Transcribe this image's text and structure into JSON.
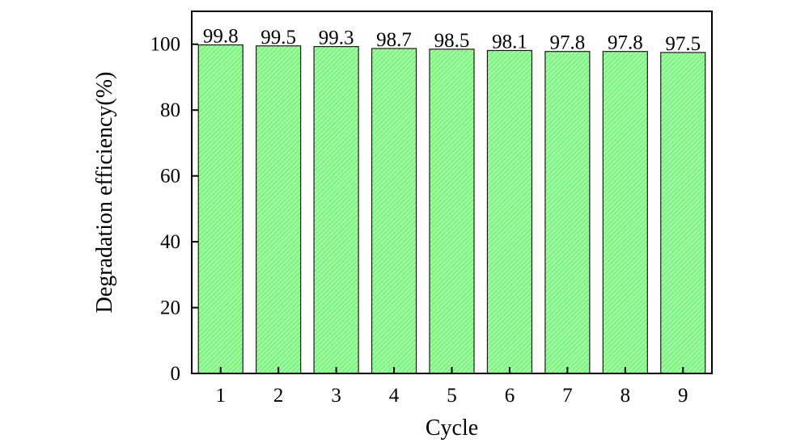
{
  "chart_data": {
    "type": "bar",
    "categories": [
      "1",
      "2",
      "3",
      "4",
      "5",
      "6",
      "7",
      "8",
      "9"
    ],
    "values": [
      99.8,
      99.5,
      99.3,
      98.7,
      98.5,
      98.1,
      97.8,
      97.8,
      97.5
    ],
    "value_labels": [
      "99.8",
      "99.5",
      "99.3",
      "98.7",
      "98.5",
      "98.1",
      "97.8",
      "97.8",
      "97.5"
    ],
    "xlabel": "Cycle",
    "ylabel": "Degradation efficiency(%)",
    "ylim": [
      0,
      110
    ],
    "yticks": [
      0,
      20,
      40,
      60,
      80,
      100
    ],
    "ytick_labels": [
      "0",
      "20",
      "40",
      "60",
      "80",
      "100"
    ],
    "grid": false,
    "legend": "none",
    "colors": {
      "bar_fill": "#99ff99",
      "bar_hatch": "#5fcf6f",
      "bar_stroke": "#1a1a1a",
      "axis": "#000000"
    }
  }
}
